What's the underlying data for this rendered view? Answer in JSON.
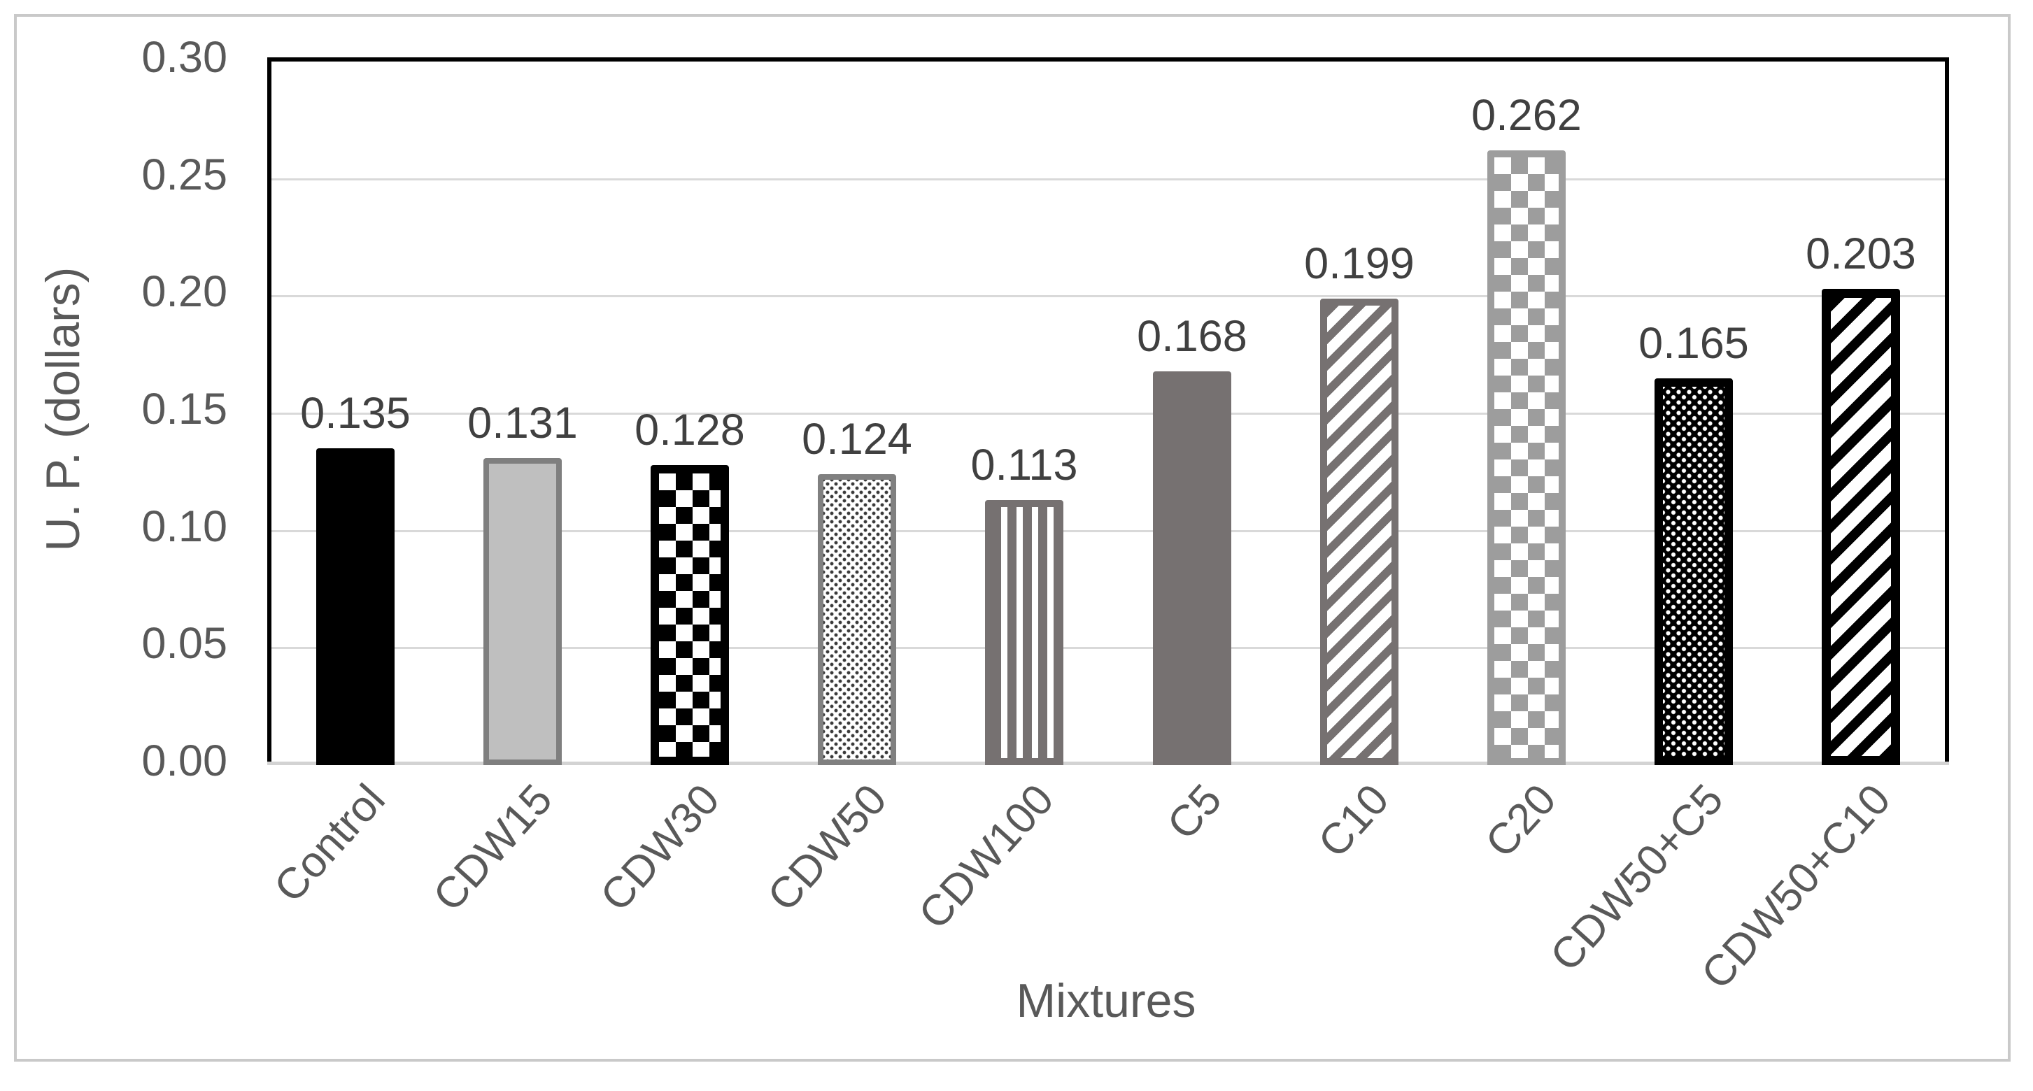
{
  "figure": {
    "background": "#ffffff",
    "frame_color": "#c9c9c9",
    "plot_border_color": "#000000",
    "gridline_color": "#d9d9d9",
    "baseline_color": "#d3d3d3",
    "tick_text_color": "#595959",
    "value_text_color": "#404040",
    "accent_dark_gray": "#767171"
  },
  "chart_data": {
    "type": "bar",
    "title": "",
    "xlabel": "Mixtures",
    "ylabel": "U. P.  (dollars)",
    "ylim": [
      0,
      0.3
    ],
    "ytick_step": 0.05,
    "grid": "horizontal",
    "legend": "none",
    "yticks": [
      {
        "value": 0.3,
        "label": "0.30"
      },
      {
        "value": 0.25,
        "label": "0.25"
      },
      {
        "value": 0.2,
        "label": "0.20"
      },
      {
        "value": 0.15,
        "label": "0.15"
      },
      {
        "value": 0.1,
        "label": "0.10"
      },
      {
        "value": 0.05,
        "label": "0.05"
      },
      {
        "value": 0.0,
        "label": "0.00"
      }
    ],
    "categories": [
      "Control",
      "CDW15",
      "CDW30",
      "CDW50",
      "CDW100",
      "C5",
      "C10",
      "C20",
      "CDW50+C5",
      "CDW50+C10"
    ],
    "values": [
      0.135,
      0.131,
      0.128,
      0.124,
      0.113,
      0.168,
      0.199,
      0.262,
      0.165,
      0.203
    ],
    "series": [
      {
        "category": "Control",
        "value": 0.135,
        "label": "0.135",
        "pattern": {
          "type": "solid",
          "fill": "#000000",
          "border": "none",
          "borderWidth": 0
        }
      },
      {
        "category": "CDW15",
        "value": 0.131,
        "label": "0.131",
        "pattern": {
          "type": "solid",
          "fill": "#bfbfbf",
          "border": "#7f7f7f",
          "borderWidth": 8
        }
      },
      {
        "category": "CDW30",
        "value": 0.128,
        "label": "0.128",
        "pattern": {
          "type": "checker",
          "fg": "#000000",
          "bg": "#ffffff",
          "cell": 24,
          "border": "#000000",
          "borderWidth": 12
        }
      },
      {
        "category": "CDW50",
        "value": 0.124,
        "label": "0.124",
        "pattern": {
          "type": "dots",
          "fg": "#3a3a3a",
          "bg": "#ffffff",
          "r": 2,
          "pitch": 12,
          "border": "#808080",
          "borderWidth": 8
        }
      },
      {
        "category": "CDW100",
        "value": 0.113,
        "label": "0.113",
        "pattern": {
          "type": "vstripes",
          "fg": "#767171",
          "bg": "#ffffff",
          "w": 13,
          "gap": 9,
          "border": "#767171",
          "borderWidth": 10
        }
      },
      {
        "category": "C5",
        "value": 0.168,
        "label": "0.168",
        "pattern": {
          "type": "solid",
          "fill": "#767171",
          "border": "none",
          "borderWidth": 0
        }
      },
      {
        "category": "C10",
        "value": 0.199,
        "label": "0.199",
        "pattern": {
          "type": "diag",
          "fg": "#767171",
          "bg": "#ffffff",
          "w": 12,
          "gap": 15,
          "border": "#767171",
          "borderWidth": 10
        }
      },
      {
        "category": "C20",
        "value": 0.262,
        "label": "0.262",
        "pattern": {
          "type": "checker",
          "fg": "#9d9d9d",
          "bg": "#ffffff",
          "cell": 24,
          "border": "#9d9d9d",
          "borderWidth": 10
        }
      },
      {
        "category": "CDW50+C5",
        "value": 0.165,
        "label": "0.165",
        "pattern": {
          "type": "dots",
          "fg": "#ffffff",
          "bg": "#000000",
          "r": 2.6,
          "pitch": 15,
          "border": "#000000",
          "borderWidth": 12
        }
      },
      {
        "category": "CDW50+C10",
        "value": 0.203,
        "label": "0.203",
        "pattern": {
          "type": "diag",
          "fg": "#000000",
          "bg": "#ffffff",
          "w": 14,
          "gap": 18,
          "border": "#000000",
          "borderWidth": 13
        }
      }
    ]
  },
  "layout_note": "bar chart, no legend, horizontal gridlines only"
}
